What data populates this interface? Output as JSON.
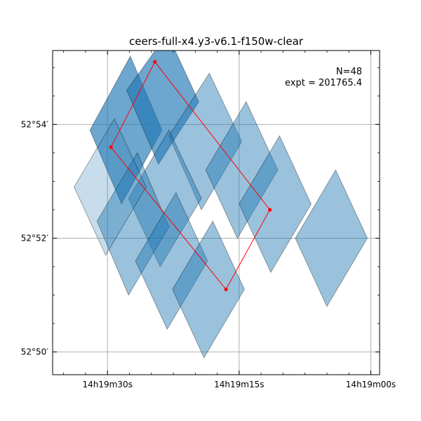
{
  "chart_data": {
    "type": "footprint-map",
    "title": "ceers-full-x4.y3-v6.1-f150w-clear",
    "annotation": {
      "n_label": "N=48",
      "expt_label": "expt = 201765.4",
      "placement": "top-right"
    },
    "x_axis": {
      "unit": "RA (seconds of time, 14h19m)",
      "range": [
        36.25,
        -1.0
      ],
      "ticks": [
        {
          "value": 30,
          "label": "14h19m30s"
        },
        {
          "value": 15,
          "label": "14h19m15s"
        },
        {
          "value": 0,
          "label": "14h19m00s"
        }
      ],
      "minor_step": 2.5
    },
    "y_axis": {
      "unit": "Dec (arcmin past 52°)",
      "range": [
        49.6,
        55.3
      ],
      "ticks": [
        {
          "value": 50,
          "label": "52°50′"
        },
        {
          "value": 52,
          "label": "52°52′"
        },
        {
          "value": 54,
          "label": "52°54′"
        }
      ],
      "minor_step": 0.5
    },
    "grid": true,
    "colors": {
      "tile_fill": "#1f77b4",
      "tile_edge": "#000000",
      "outline": "#ff0000"
    },
    "tiles": [
      {
        "corners": [
          [
            32.0,
            53.9
          ],
          [
            27.4,
            55.2
          ],
          [
            23.8,
            53.9
          ],
          [
            28.4,
            52.6
          ]
        ],
        "opacity": 0.65
      },
      {
        "corners": [
          [
            27.8,
            54.6
          ],
          [
            23.2,
            55.6
          ],
          [
            19.6,
            54.4
          ],
          [
            24.2,
            53.3
          ]
        ],
        "opacity": 0.65
      },
      {
        "corners": [
          [
            23.0,
            53.8
          ],
          [
            18.4,
            54.9
          ],
          [
            14.7,
            53.7
          ],
          [
            19.3,
            52.5
          ]
        ],
        "opacity": 0.45
      },
      {
        "corners": [
          [
            27.6,
            52.7
          ],
          [
            23.0,
            53.9
          ],
          [
            19.3,
            52.7
          ],
          [
            24.0,
            51.5
          ]
        ],
        "opacity": 0.45
      },
      {
        "corners": [
          [
            31.2,
            52.3
          ],
          [
            26.6,
            53.5
          ],
          [
            23.0,
            52.2
          ],
          [
            27.6,
            51.0
          ]
        ],
        "opacity": 0.45
      },
      {
        "corners": [
          [
            18.8,
            53.2
          ],
          [
            14.2,
            54.4
          ],
          [
            10.6,
            53.2
          ],
          [
            15.2,
            52.0
          ]
        ],
        "opacity": 0.45
      },
      {
        "corners": [
          [
            26.8,
            51.6
          ],
          [
            22.2,
            52.8
          ],
          [
            18.6,
            51.6
          ],
          [
            23.2,
            50.4
          ]
        ],
        "opacity": 0.45
      },
      {
        "corners": [
          [
            22.6,
            51.1
          ],
          [
            18.0,
            52.3
          ],
          [
            14.4,
            51.1
          ],
          [
            19.0,
            49.9
          ]
        ],
        "opacity": 0.45
      },
      {
        "corners": [
          [
            15.0,
            52.6
          ],
          [
            10.4,
            53.8
          ],
          [
            6.8,
            52.6
          ],
          [
            11.4,
            51.4
          ]
        ],
        "opacity": 0.45
      },
      {
        "corners": [
          [
            8.6,
            52.0
          ],
          [
            4.0,
            53.2
          ],
          [
            0.4,
            52.0
          ],
          [
            5.0,
            50.8
          ]
        ],
        "opacity": 0.45
      },
      {
        "corners": [
          [
            33.8,
            52.9
          ],
          [
            29.2,
            54.1
          ],
          [
            25.6,
            52.9
          ],
          [
            30.2,
            51.7
          ]
        ],
        "opacity": 0.25
      }
    ],
    "outline": {
      "points": [
        [
          29.6,
          53.6
        ],
        [
          24.6,
          55.1
        ],
        [
          11.5,
          52.5
        ],
        [
          16.5,
          51.1
        ],
        [
          29.6,
          53.6
        ]
      ]
    }
  }
}
